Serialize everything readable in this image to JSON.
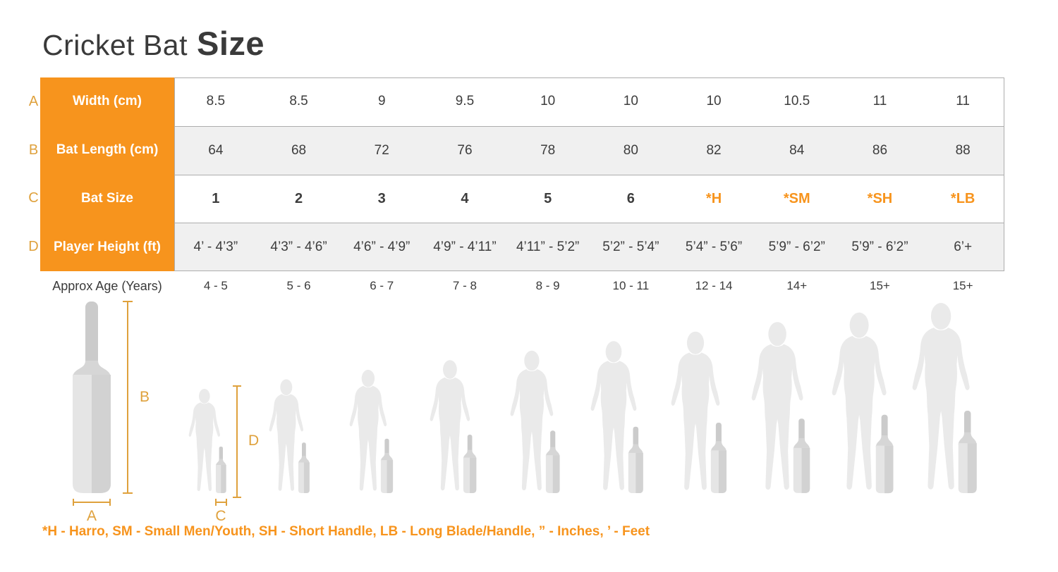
{
  "title": {
    "light": "Cricket Bat",
    "bold": "Size"
  },
  "chart_data": {
    "type": "table",
    "title": "Cricket Bat Size",
    "rows": [
      {
        "letter": "A",
        "label": "Width (cm)",
        "values": [
          "8.5",
          "8.5",
          "9",
          "9.5",
          "10",
          "10",
          "10",
          "10.5",
          "11",
          "11"
        ]
      },
      {
        "letter": "B",
        "label": "Bat Length (cm)",
        "values": [
          "64",
          "68",
          "72",
          "76",
          "78",
          "80",
          "82",
          "84",
          "86",
          "88"
        ]
      },
      {
        "letter": "C",
        "label": "Bat Size",
        "values": [
          "1",
          "2",
          "3",
          "4",
          "5",
          "6",
          "*H",
          "*SM",
          "*SH",
          "*LB"
        ]
      },
      {
        "letter": "D",
        "label": "Player Height (ft)",
        "values": [
          "4’ - 4’3”",
          "4’3” - 4’6”",
          "4’6” - 4’9”",
          "4’9” - 4’11”",
          "4’11” - 5’2”",
          "5’2” - 5’4”",
          "5’4” - 5’6”",
          "5’9” - 6’2”",
          "5’9” - 6’2”",
          "6’+"
        ]
      }
    ],
    "age_row": {
      "label": "Approx Age (Years)",
      "values": [
        "4 - 5",
        "5 - 6",
        "6 - 7",
        "7 - 8",
        "8 - 9",
        "10 - 11",
        "12 - 14",
        "14+",
        "15+",
        "15+"
      ]
    },
    "legend": "*H - Harro, SM - Small Men/Youth, SH - Short Handle,  LB - Long Blade/Handle, ” - Inches, ’ - Feet",
    "figure_count": 10
  },
  "colors": {
    "accent_orange": "#F7941D",
    "dimension_orange": "#DFA13C",
    "row_alt_gray": "#F0F0F0",
    "text_dark": "#3D3D3D",
    "silhouette_gray": "#EAEAEA",
    "border_gray": "#ADADAD"
  }
}
